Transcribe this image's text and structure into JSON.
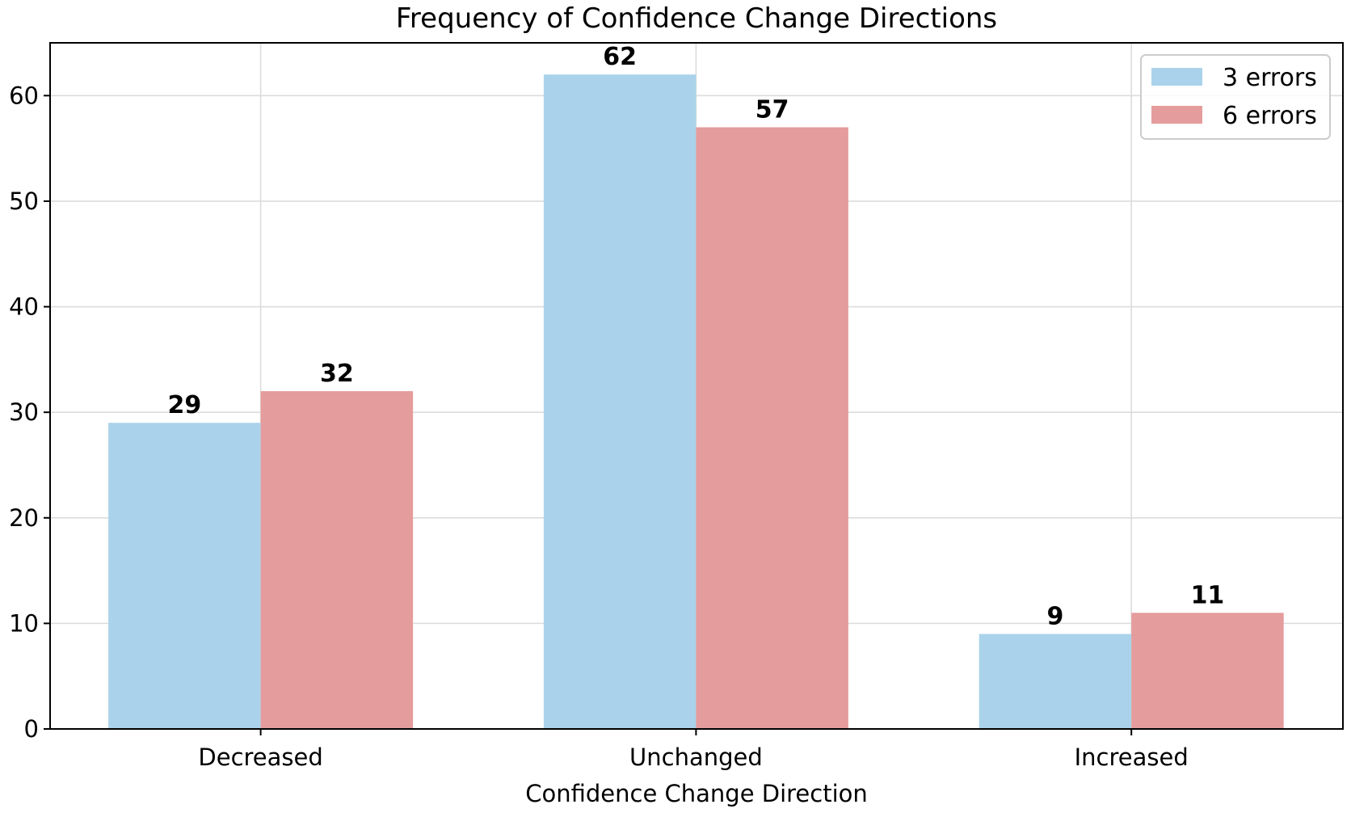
{
  "chart_data": {
    "type": "bar",
    "title": "Frequency of Confidence Change Directions",
    "xlabel": "Confidence Change Direction",
    "ylabel": "",
    "categories": [
      "Decreased",
      "Unchanged",
      "Increased"
    ],
    "series": [
      {
        "name": "3 errors",
        "values": [
          29,
          62,
          9
        ],
        "color": "#aad3eb"
      },
      {
        "name": "6 errors",
        "values": [
          32,
          57,
          11
        ],
        "color": "#e59c9c"
      }
    ],
    "ylim": [
      0,
      65
    ],
    "yticks": [
      0,
      10,
      20,
      30,
      40,
      50,
      60
    ],
    "grid": true,
    "legend_position": "top-right",
    "bar_labels": true
  }
}
